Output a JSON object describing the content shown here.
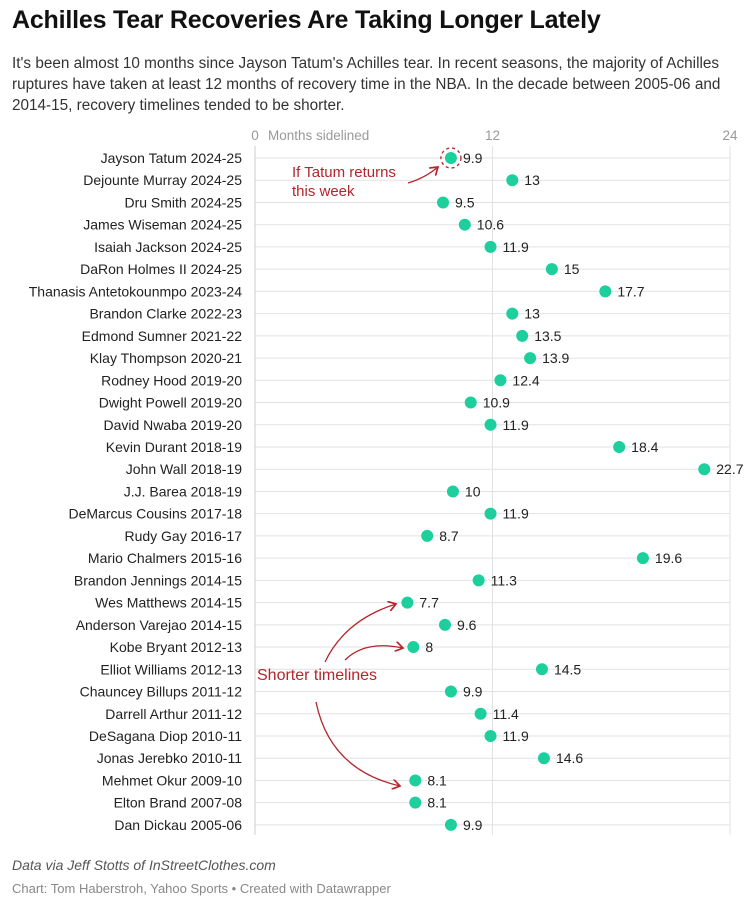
{
  "title": "Achilles Tear Recoveries Are Taking Longer Lately",
  "subtitle": "It's been almost 10 months since Jayson Tatum's Achilles tear. In recent seasons, the majority of Achilles ruptures have taken at least 12 months of recovery time in the NBA. In the decade between 2005-06 and 2014-15, recovery timelines tended to be shorter.",
  "source": "Data via Jeff Stotts of InStreetClothes.com",
  "credit": "Chart: Tom Haberstroh, Yahoo Sports • Created with Datawrapper",
  "colors": {
    "dot": "#1ccf9c",
    "annotation": "#b3262b",
    "grid": "#e2e2e2"
  },
  "chart_data": {
    "type": "scatter",
    "title": "Achilles Tear Recoveries Are Taking Longer Lately",
    "xlabel": "Months sidelined",
    "xlim": [
      0,
      24
    ],
    "xticks": [
      "0",
      "12",
      "24"
    ],
    "grid": true,
    "categories": [
      "Jayson Tatum 2024-25",
      "Dejounte Murray 2024-25",
      "Dru Smith 2024-25",
      "James Wiseman 2024-25",
      "Isaiah Jackson 2024-25",
      "DaRon Holmes II 2024-25",
      "Thanasis Antetokounmpo 2023-24",
      "Brandon Clarke 2022-23",
      "Edmond Sumner 2021-22",
      "Klay Thompson 2020-21",
      "Rodney Hood 2019-20",
      "Dwight Powell 2019-20",
      "David Nwaba 2019-20",
      "Kevin Durant 2018-19",
      "John Wall 2018-19",
      "J.J. Barea 2018-19",
      "DeMarcus Cousins 2017-18",
      "Rudy Gay 2016-17",
      "Mario Chalmers 2015-16",
      "Brandon Jennings 2014-15",
      "Wes Matthews 2014-15",
      "Anderson Varejao 2014-15",
      "Kobe Bryant 2012-13",
      "Elliot Williams 2012-13",
      "Chauncey Billups 2011-12",
      "Darrell Arthur 2011-12",
      "DeSagana Diop 2010-11",
      "Jonas Jerebko 2010-11",
      "Mehmet Okur 2009-10",
      "Elton Brand 2007-08",
      "Dan Dickau 2005-06"
    ],
    "values": [
      9.9,
      13,
      9.5,
      10.6,
      11.9,
      15,
      17.7,
      13,
      13.5,
      13.9,
      12.4,
      10.9,
      11.9,
      18.4,
      22.7,
      10,
      11.9,
      8.7,
      19.6,
      11.3,
      7.7,
      9.6,
      8,
      14.5,
      9.9,
      11.4,
      11.9,
      14.6,
      8.1,
      8.1,
      9.9
    ],
    "value_labels": [
      "9.9",
      "13",
      "9.5",
      "10.6",
      "11.9",
      "15",
      "17.7",
      "13",
      "13.5",
      "13.9",
      "12.4",
      "10.9",
      "11.9",
      "18.4",
      "22.7",
      "10",
      "11.9",
      "8.7",
      "19.6",
      "11.3",
      "7.7",
      "9.6",
      "8",
      "14.5",
      "9.9",
      "11.4",
      "11.9",
      "14.6",
      "8.1",
      "8.1",
      "9.9"
    ],
    "annotations": [
      {
        "text_lines": [
          "If Tatum returns",
          "this week"
        ],
        "target": "Jayson Tatum 2024-25"
      },
      {
        "text_lines": [
          "Shorter timelines"
        ],
        "targets": [
          "Wes Matthews 2014-15",
          "Kobe Bryant 2012-13",
          "Mehmet Okur 2009-10"
        ]
      }
    ]
  }
}
